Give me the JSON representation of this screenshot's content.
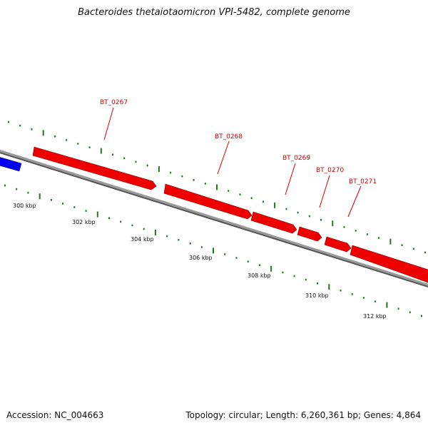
{
  "header": {
    "title": "Bacteroides thetaiotaomicron VPI-5482, complete genome"
  },
  "footer": {
    "accession": "Accession: NC_004663",
    "summary": "Topology: circular; Length: 6,260,361 bp; Genes: 4,864"
  },
  "colors": {
    "forward_gene": "#ff0000",
    "reverse_gene": "#0000ff",
    "backbone": "#888888",
    "ticks": "#1a7a1a",
    "label_text": "#cc0000",
    "leader": "#cc0000"
  },
  "genes": [
    {
      "name": "BT_0267"
    },
    {
      "name": "BT_0268"
    },
    {
      "name": "BT_0269"
    },
    {
      "name": "BT_0270"
    },
    {
      "name": "BT_0271"
    }
  ],
  "scale": {
    "labels": [
      "300 kbp",
      "302 kbp",
      "304 kbp",
      "306 kbp",
      "308 kbp",
      "310 kbp",
      "312 kbp"
    ]
  }
}
